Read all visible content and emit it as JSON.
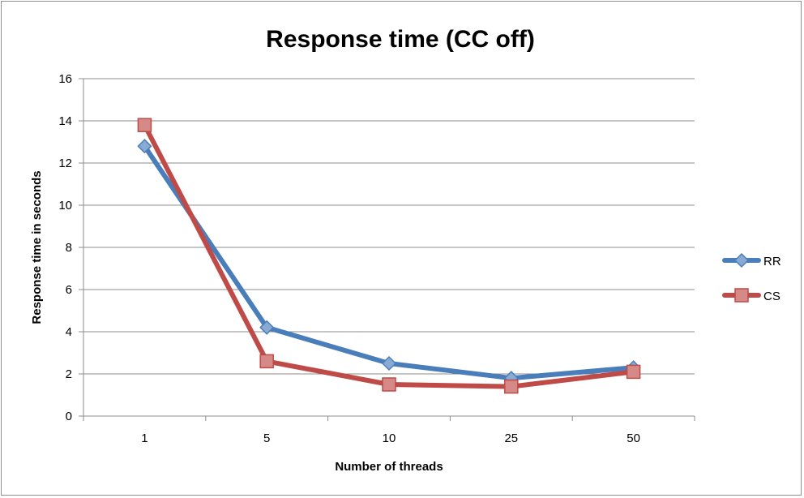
{
  "chart_data": {
    "type": "line",
    "title": "Response time (CC off)",
    "xlabel": "Number of threads",
    "ylabel": "Response time in seconds",
    "categories": [
      "1",
      "5",
      "10",
      "25",
      "50"
    ],
    "ylim": [
      0,
      16
    ],
    "yticks": [
      0,
      2,
      4,
      6,
      8,
      10,
      12,
      14,
      16
    ],
    "grid": true,
    "legend_position": "right",
    "series": [
      {
        "name": "RR",
        "values": [
          12.8,
          4.2,
          2.5,
          1.8,
          2.3
        ],
        "color": "#4a7ebb",
        "marker": "diamond"
      },
      {
        "name": "CS",
        "values": [
          13.8,
          2.6,
          1.5,
          1.4,
          2.1
        ],
        "color": "#be4b48",
        "marker": "square"
      }
    ]
  }
}
